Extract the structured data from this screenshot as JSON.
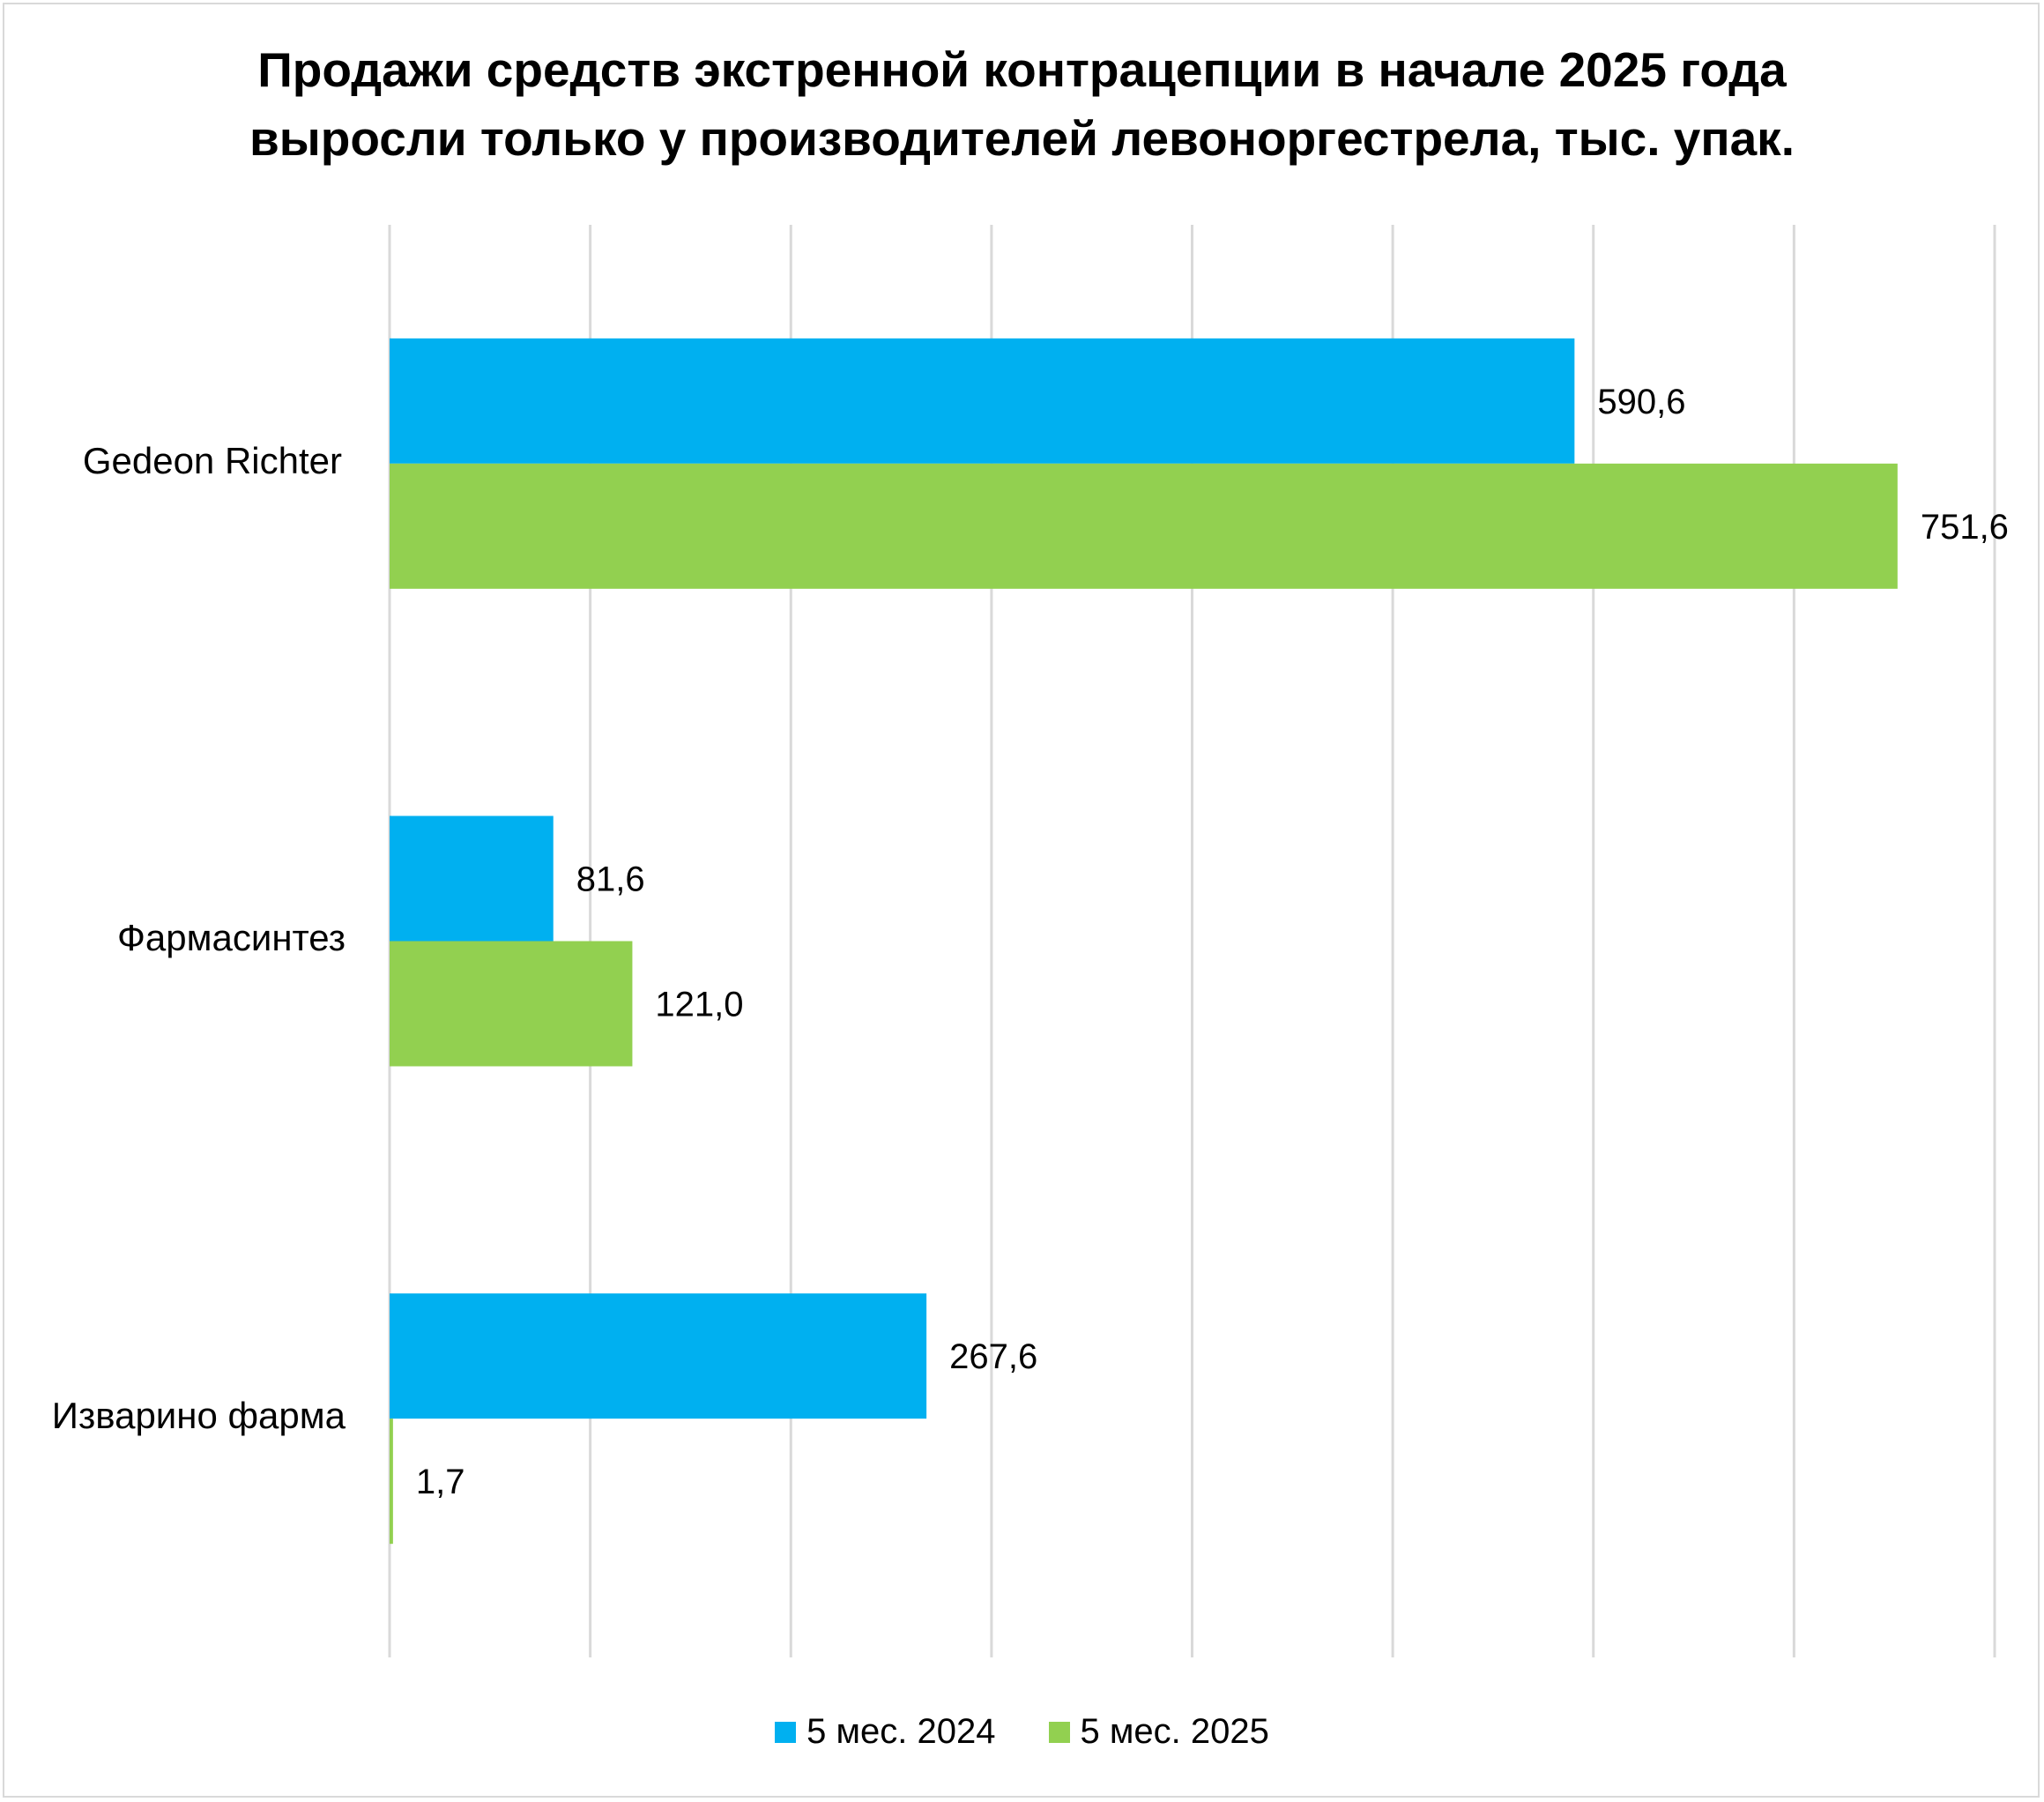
{
  "chart_data": {
    "type": "bar",
    "orientation": "horizontal",
    "title": "Продажи средств экстренной контрацепции в начале 2025 года выросли только у производителей левоноргестрела, тыс. упак.",
    "title_lines": [
      "Продажи средств экстренной контрацепции в начале 2025 года",
      "выросли только у производителей левоноргестрела, тыс. упак."
    ],
    "categories": [
      "Gedeon Richter",
      "Фармасинтез",
      "Изварино фарма"
    ],
    "category_labels": {
      "c0": "Gedeon Richter",
      "c1": "Фармасинтез",
      "c2": "Изварино фарма"
    },
    "series": [
      {
        "name": "5 мес. 2024",
        "color": "#00B0F0",
        "values": [
          590.6,
          81.6,
          267.6
        ],
        "labels": [
          "590,6",
          "81,6",
          "267,6"
        ]
      },
      {
        "name": "5 мес. 2025",
        "color": "#92D050",
        "values": [
          751.6,
          121.0,
          1.7
        ],
        "labels": [
          "751,6",
          "121,0",
          "1,7"
        ]
      }
    ],
    "series_labels": {
      "s0": {
        "l0": "590,6",
        "l1": "81,6",
        "l2": "267,6"
      },
      "s1": {
        "l0": "751,6",
        "l1": "121,0",
        "l2": "1,7"
      }
    },
    "xlim": [
      0,
      800
    ],
    "x_gridline_step": 100,
    "grid": true,
    "axis_ticks_visible": false,
    "legend_position": "bottom",
    "gridline_color": "#d9d9d9"
  }
}
